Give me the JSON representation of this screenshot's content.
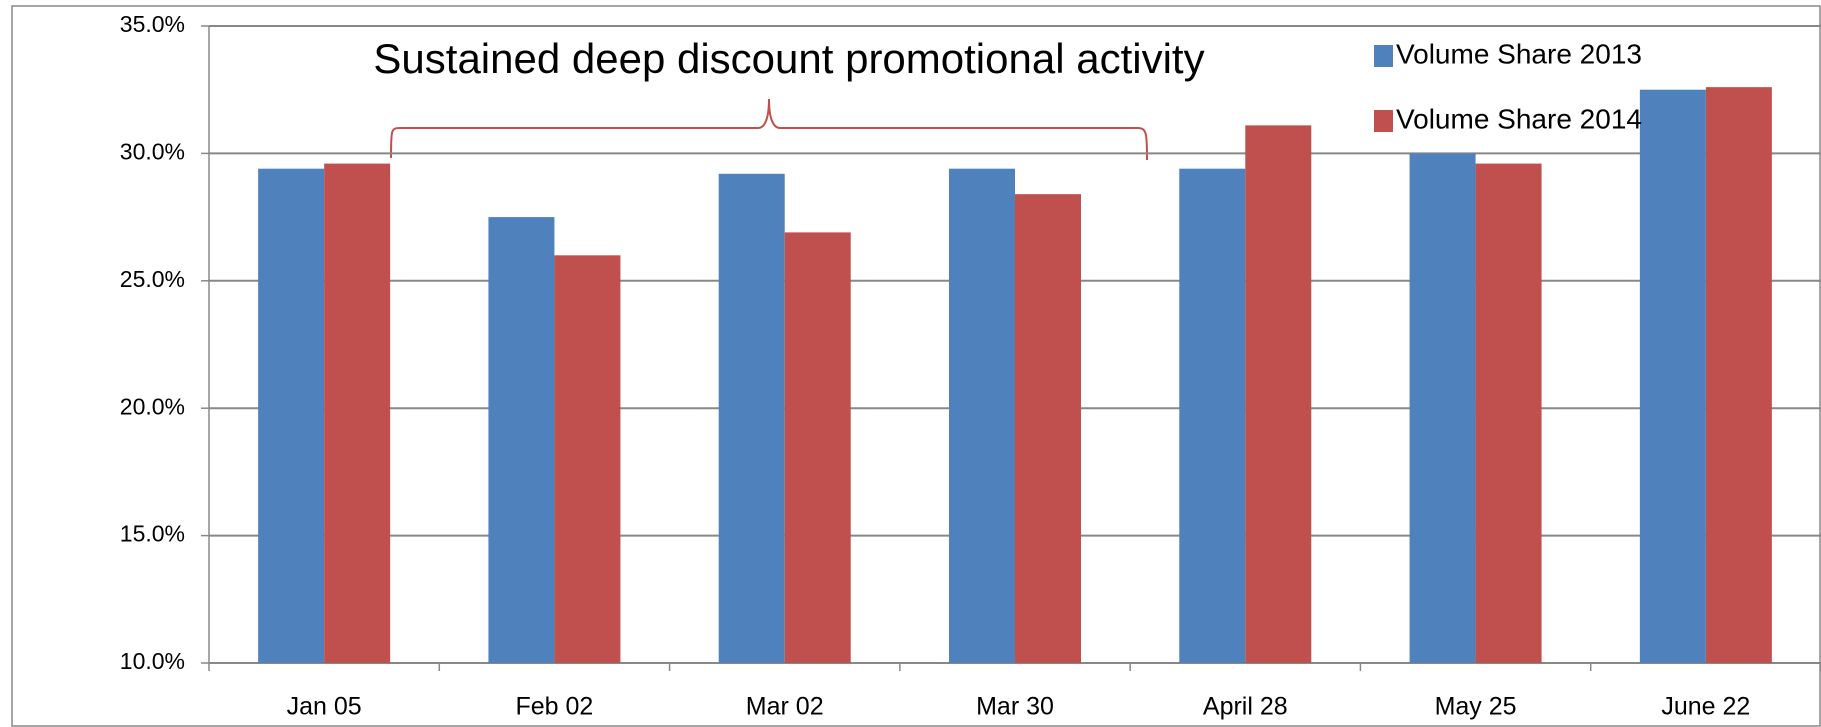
{
  "chart_data": {
    "type": "bar",
    "annotation": "Sustained deep discount promotional activity",
    "categories": [
      "Jan 05",
      "Feb 02",
      "Mar 02",
      "Mar 30",
      "April 28",
      "May 25",
      "June 22"
    ],
    "series": [
      {
        "name": "Volume Share 2013",
        "color": "#4f81bd",
        "values": [
          29.4,
          27.5,
          29.2,
          29.4,
          29.4,
          30.0,
          32.5
        ]
      },
      {
        "name": "Volume Share 2014",
        "color": "#c0504d",
        "values": [
          29.6,
          26.0,
          26.9,
          28.4,
          31.1,
          29.6,
          32.6
        ]
      }
    ],
    "ylim": [
      10,
      35
    ],
    "yticks": [
      {
        "value": 10,
        "label": "10.0%"
      },
      {
        "value": 15,
        "label": "15.0%"
      },
      {
        "value": 20,
        "label": "20.0%"
      },
      {
        "value": 25,
        "label": "25.0%"
      },
      {
        "value": 30,
        "label": "30.0%"
      },
      {
        "value": 35,
        "label": "35.0%"
      }
    ],
    "grid": true,
    "legend": "top-right"
  }
}
